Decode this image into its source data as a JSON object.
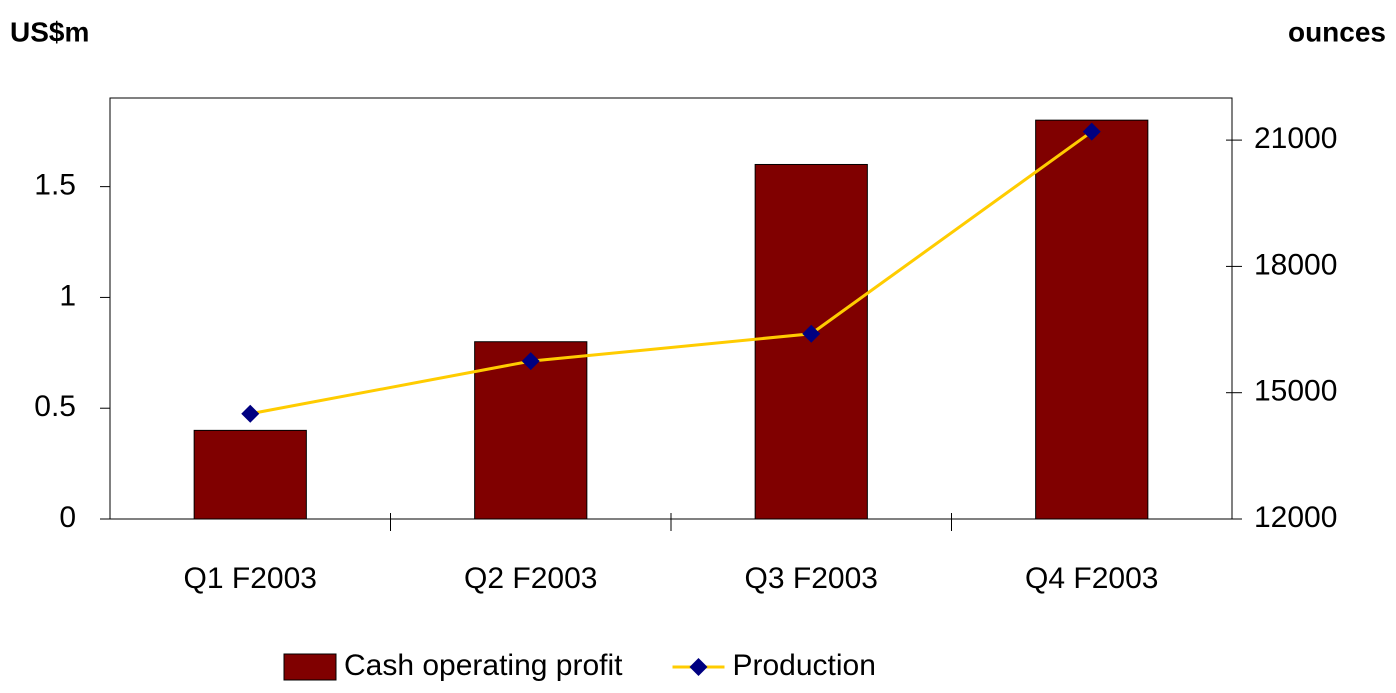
{
  "chart_data": {
    "type": "bar_line",
    "y_label": "US$m",
    "y2_label": "ounces",
    "categories": [
      "Q1 F2003",
      "Q2 F2003",
      "Q3 F2003",
      "Q4 F2003"
    ],
    "series": [
      {
        "name": "Cash operating profit",
        "type": "bar",
        "color": "#800000",
        "values": [
          0.4,
          0.8,
          1.6,
          1.8
        ]
      },
      {
        "name": "Production",
        "type": "line",
        "axis": "y2",
        "color": "#ffcc00",
        "marker_color": "#000080",
        "values": [
          14500,
          15750,
          16400,
          21200
        ]
      }
    ],
    "ylim": [
      0,
      1.9
    ],
    "yticks": [
      0,
      0.5,
      1,
      1.5
    ],
    "y2lim": [
      12000,
      22000
    ],
    "y2ticks": [
      12000,
      15000,
      18000,
      21000
    ],
    "grid": false
  }
}
